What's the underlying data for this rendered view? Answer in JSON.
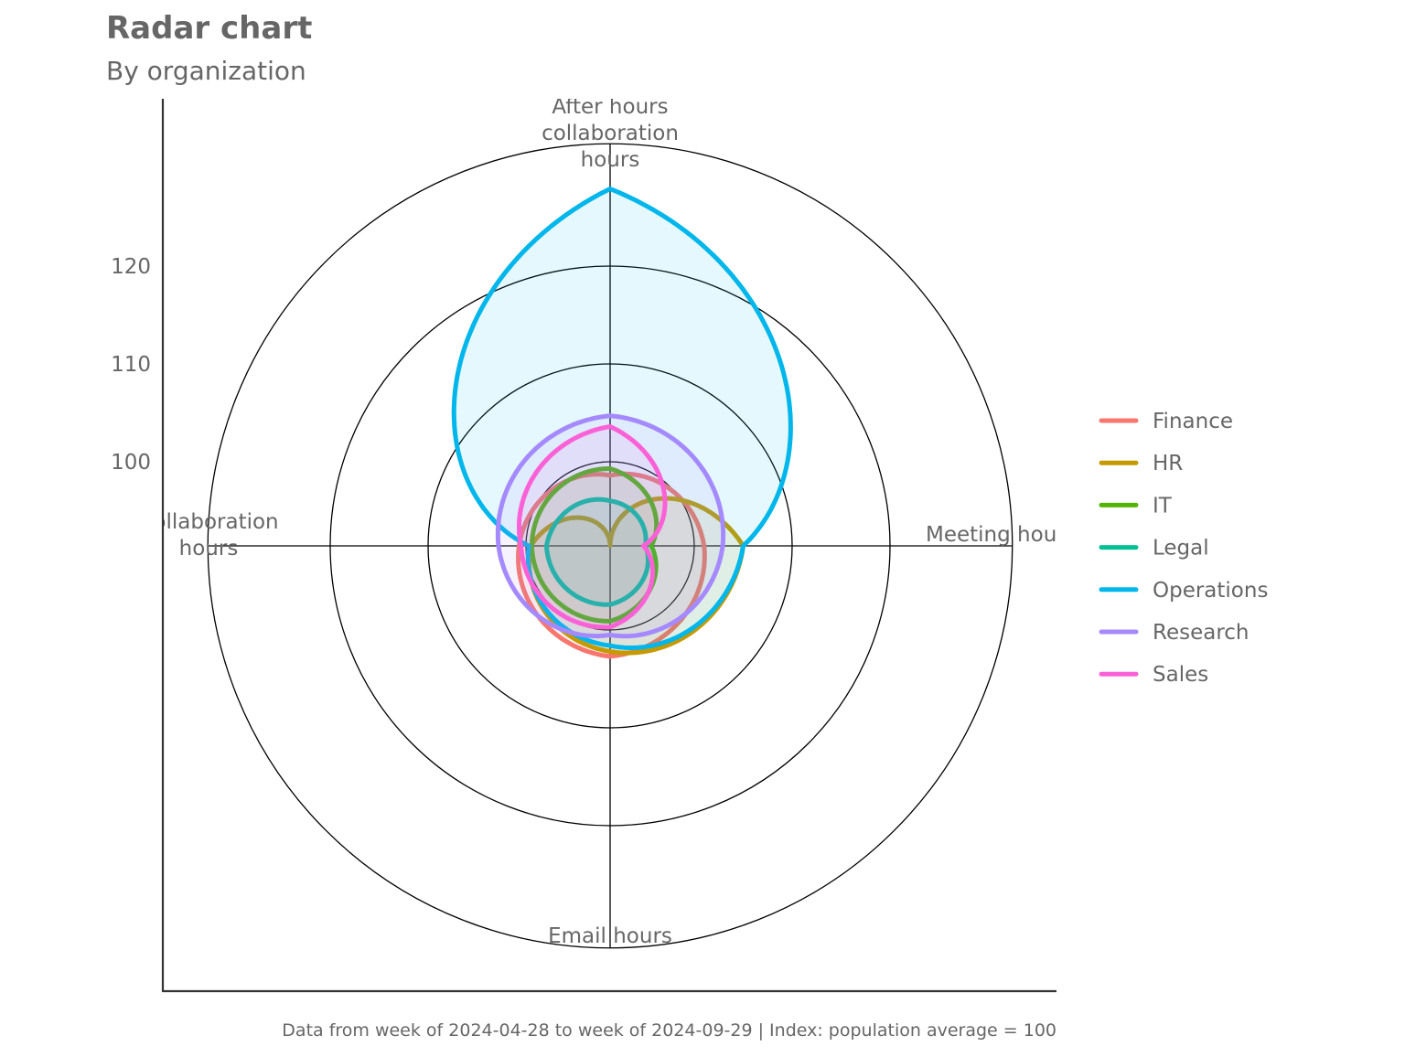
{
  "chart_data": {
    "type": "radar",
    "title": "Radar chart",
    "subtitle": "By organization",
    "caption": "Data from week of 2024-04-28 to week of 2024-09-29 | Index: population average = 100",
    "axes": [
      "After hours collaboration hours",
      "Meeting hours",
      "Email hours",
      "Collaboration hours"
    ],
    "axis_label_lines": [
      [
        "After hours",
        "collaboration",
        "hours"
      ],
      [
        "Meeting hours"
      ],
      [
        "Email hours"
      ],
      [
        "Collaboration",
        "hours"
      ]
    ],
    "r_ticks": [
      100,
      110,
      120
    ],
    "r_tick_labels": [
      "100",
      "110",
      "120"
    ],
    "r_range": [
      91.4,
      132.5
    ],
    "legend_position": "right",
    "series": [
      {
        "name": "Finance",
        "color": "#F8766D",
        "values": [
          98.6,
          101.0,
          102.7,
          100.7
        ]
      },
      {
        "name": "HR",
        "color": "#C49A00",
        "values": [
          91.4,
          105.0,
          102.2,
          99.5
        ]
      },
      {
        "name": "IT",
        "color": "#53B400",
        "values": [
          99.3,
          95.6,
          99.1,
          99.4
        ]
      },
      {
        "name": "Legal",
        "color": "#00C094",
        "values": [
          96.0,
          95.0,
          97.4,
          97.9
        ]
      },
      {
        "name": "Operations",
        "color": "#00B6EB",
        "values": [
          127.9,
          105.0,
          101.6,
          99.7
        ]
      },
      {
        "name": "Research",
        "color": "#A58AFF",
        "values": [
          104.7,
          102.9,
          100.5,
          102.8
        ]
      },
      {
        "name": "Sales",
        "color": "#FB61D7",
        "values": [
          103.6,
          94.8,
          99.7,
          100.5
        ]
      }
    ]
  }
}
